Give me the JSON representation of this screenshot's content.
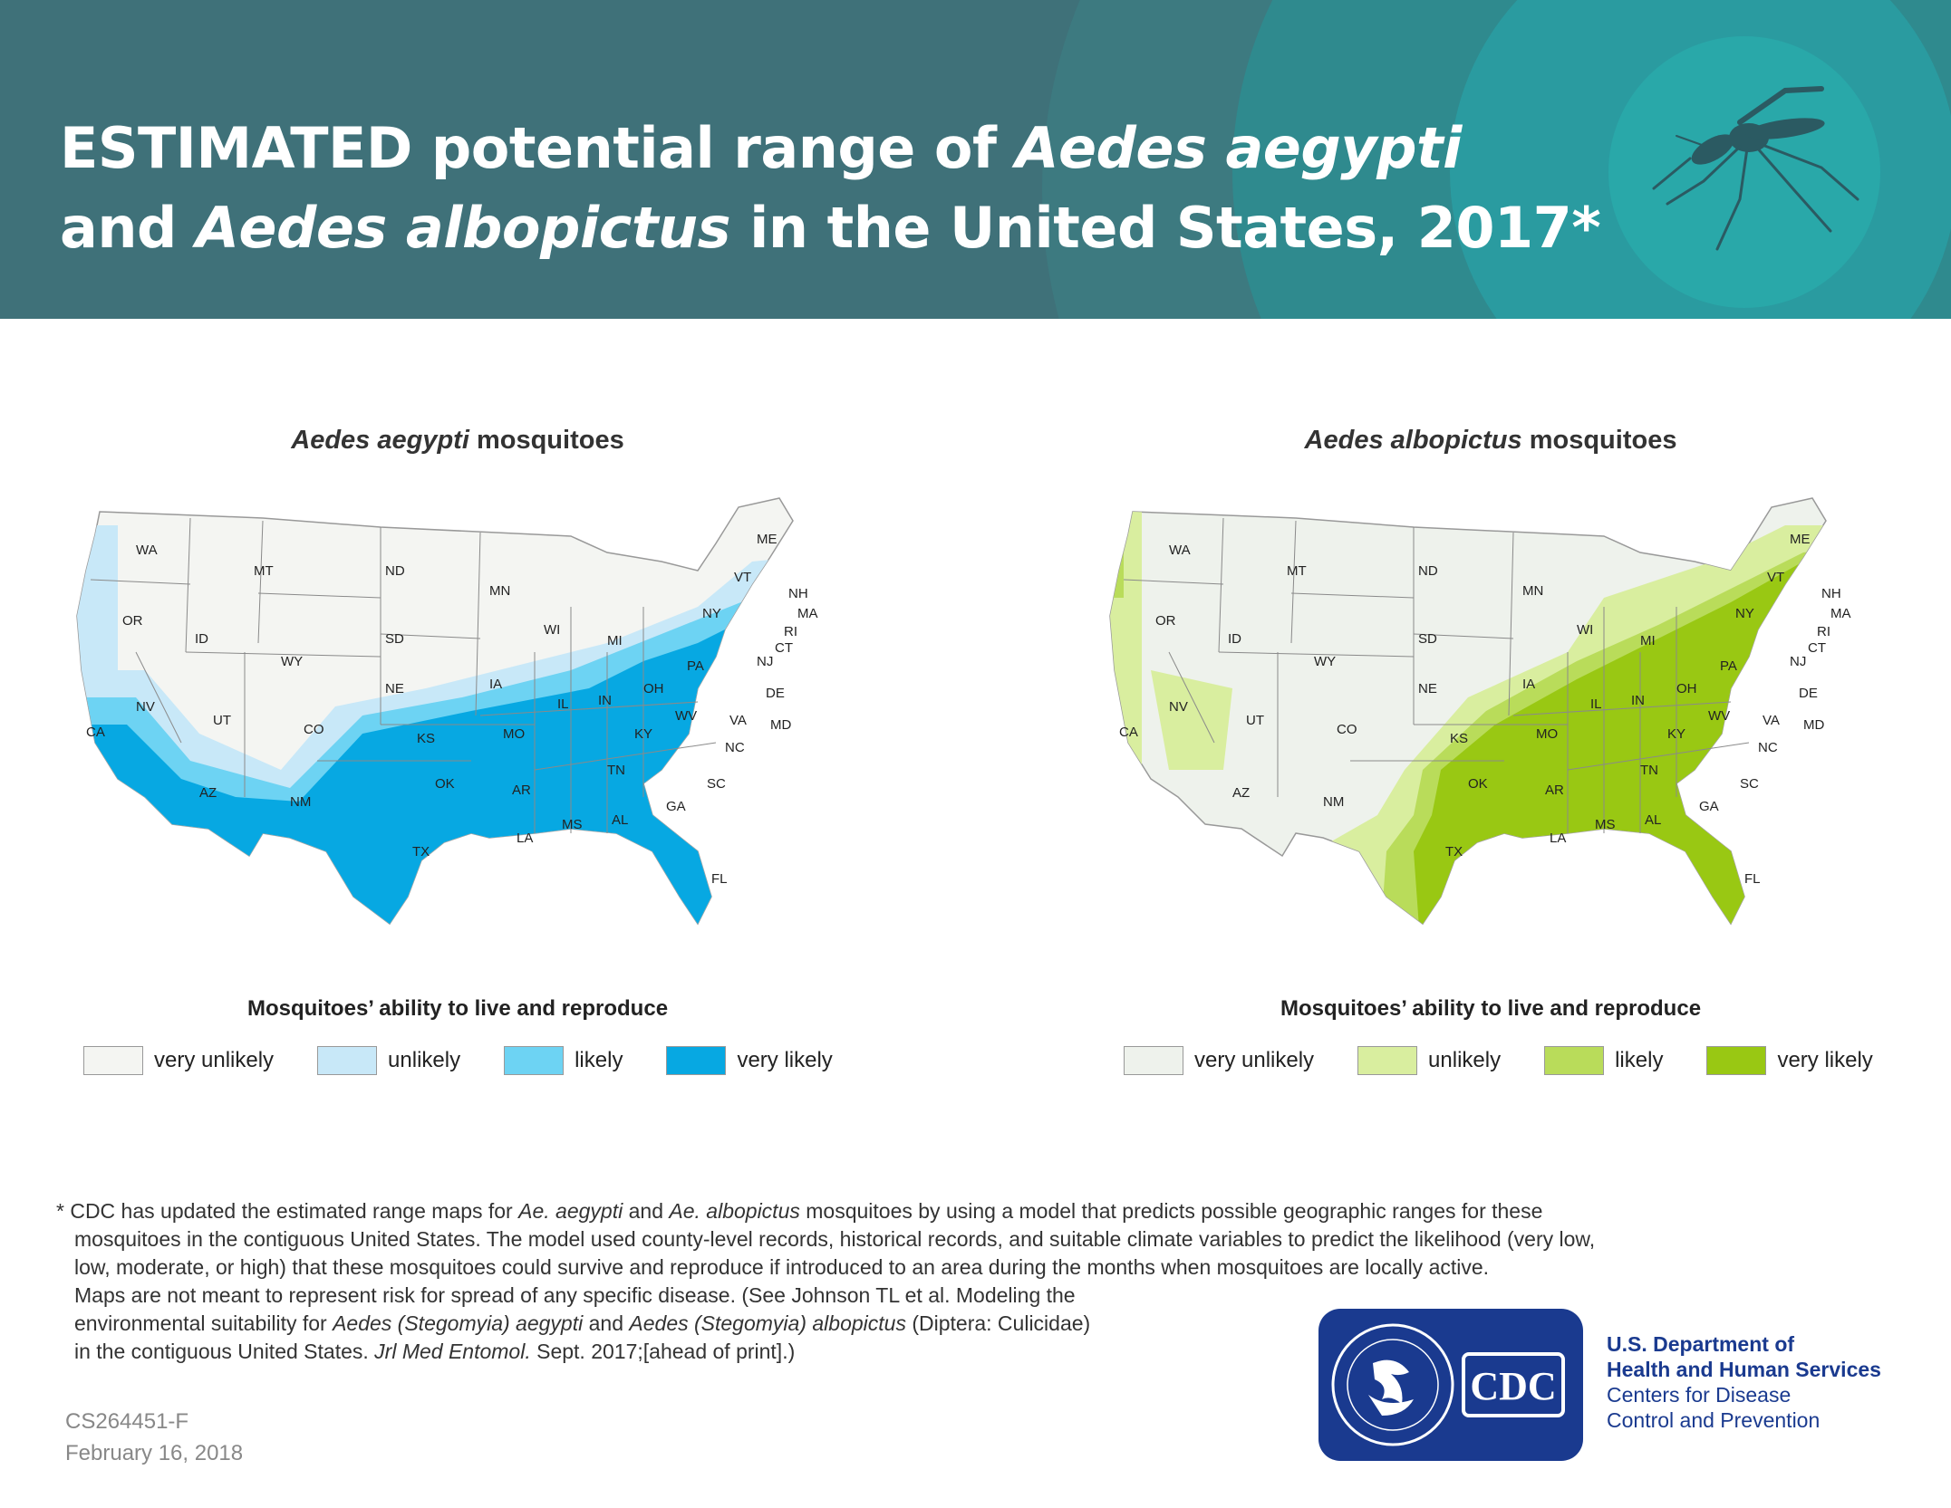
{
  "header": {
    "title_line1_part1": "ESTIMATED potential range of ",
    "title_line1_italic": "Aedes aegypti",
    "title_line2_part1": "and ",
    "title_line2_italic": "Aedes albopictus",
    "title_line2_part2": " in the United States, 2017*",
    "icon": "mosquito-icon"
  },
  "maps": [
    {
      "title_italic": "Aedes aegypti",
      "title_rest": " mosquitoes",
      "legend_title": "Mosquitoes’ ability to live and reproduce",
      "legend": [
        {
          "label": "very unlikely",
          "color": "#f4f5f2"
        },
        {
          "label": "unlikely",
          "color": "#c8e8f8"
        },
        {
          "label": "likely",
          "color": "#6dd3f3"
        },
        {
          "label": "very likely",
          "color": "#07a8e2"
        }
      ]
    },
    {
      "title_italic": "Aedes albopictus",
      "title_rest": " mosquitoes",
      "legend_title": "Mosquitoes’ ability to live and reproduce",
      "legend": [
        {
          "label": "very unlikely",
          "color": "#eef2ec"
        },
        {
          "label": "unlikely",
          "color": "#d9ee9f"
        },
        {
          "label": "likely",
          "color": "#b9dc5a"
        },
        {
          "label": "very likely",
          "color": "#99c813"
        }
      ]
    }
  ],
  "state_labels": [
    "WA",
    "MT",
    "ND",
    "MN",
    "ME",
    "OR",
    "ID",
    "SD",
    "WI",
    "MI",
    "NY",
    "VT",
    "NH",
    "MA",
    "RI",
    "CT",
    "NJ",
    "WY",
    "NE",
    "IA",
    "PA",
    "OH",
    "IN",
    "IL",
    "DE",
    "NV",
    "UT",
    "CO",
    "KS",
    "MO",
    "WV",
    "VA",
    "KY",
    "MD",
    "CA",
    "NC",
    "TN",
    "OK",
    "AR",
    "SC",
    "AZ",
    "NM",
    "MS",
    "AL",
    "GA",
    "TX",
    "LA",
    "FL"
  ],
  "footnote": {
    "l1a": "* CDC has updated the estimated range maps for ",
    "l1b": "Ae. aegypti",
    "l1c": " and ",
    "l1d": "Ae. albopictus",
    "l1e": " mosquitoes by using a model that predicts possible geographic ranges for these",
    "l2": "mosquitoes in the contiguous United States. The model used county-level records, historical records, and suitable climate variables to predict the likelihood (very low,",
    "l3": "low, moderate, or high) that these mosquitoes could survive and reproduce if introduced to an area during the months when mosquitoes are locally active.",
    "l4": "Maps are not meant to represent risk for spread of any specific disease. (See Johnson TL et al. Modeling the",
    "l5a": "environmental suitability for ",
    "l5b": "Aedes (Stegomyia) aegypti",
    "l5c": " and ",
    "l5d": "Aedes (Stegomyia) albopictus",
    "l5e": " (Diptera: Culicidae)",
    "l6a": "in the contiguous United States. ",
    "l6b": "Jrl Med Entomol.",
    "l6c": " Sept. 2017;[ahead of print].)"
  },
  "meta": {
    "id": "CS264451-F",
    "date": "February 16, 2018"
  },
  "agency": {
    "logo_text": "CDC",
    "hhs_icon": "hhs-eagle-icon",
    "line1": "U.S. Department of",
    "line2": "Health and Human Services",
    "line3": "Centers for Disease",
    "line4": "Control and Prevention"
  }
}
